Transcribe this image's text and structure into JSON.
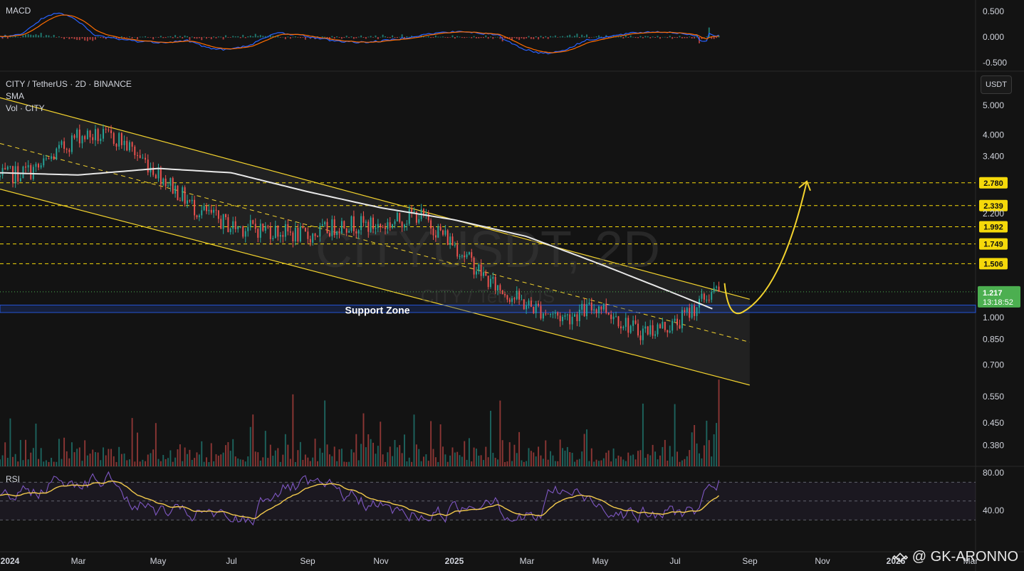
{
  "symbol_header": "CITY / TetherUS · 2D · BINANCE",
  "indicators": {
    "sma": "SMA",
    "vol": "Vol · CITY",
    "macd": "MACD",
    "rsi": "RSI"
  },
  "currency_button": "USDT",
  "watermark": {
    "symbol": "CITYUSDT, 2D",
    "name": "CITY / TetherUS"
  },
  "annotation": {
    "support_zone": "Support Zone"
  },
  "brand": {
    "handle": "@ GK-ARONNO"
  },
  "colors": {
    "up": "#26a69a",
    "down": "#ef5350",
    "channel": "#f2d22e",
    "sma": "#e8e8e8",
    "rsi": "#7e57c2",
    "rsi_ma": "#f2c94c",
    "macd": "#2962ff",
    "signal": "#ff6d00",
    "price_badge": "#4caf50",
    "level_badge": "#f5d90a"
  },
  "chart_data": {
    "type": "candlestick",
    "interval": "2D",
    "y_scale": "log",
    "ylim": [
      0.33,
      6.0
    ],
    "price_ticks": [
      "5.000",
      "4.000",
      "3.400",
      "2.200",
      "1.000",
      "0.850",
      "0.700",
      "0.550",
      "0.450",
      "0.380"
    ],
    "x_ticks": [
      "2024",
      "Mar",
      "May",
      "Jul",
      "Sep",
      "Nov",
      "2025",
      "Mar",
      "May",
      "Jul",
      "Sep",
      "Nov",
      "2026",
      "Mar"
    ],
    "last_price": {
      "value": "1.217",
      "countdown": "13:18:52"
    },
    "resistance_levels": [
      "2.780",
      "2.339",
      "1.992",
      "1.749",
      "1.506"
    ],
    "support_zone": [
      1.04,
      1.1
    ],
    "channel": {
      "upper": [
        [
          "Jan 2024",
          5.3
        ],
        [
          "Sep 2025",
          1.15
        ]
      ],
      "lower": [
        [
          "Jan 2024",
          2.65
        ],
        [
          "Sep 2025",
          0.6
        ]
      ]
    },
    "close_path": [
      [
        "Jan 2024",
        2.9
      ],
      [
        "Feb 2024",
        3.1
      ],
      [
        "Mar 2024",
        4.0
      ],
      [
        "Apr 2024",
        3.9
      ],
      [
        "May 2024",
        3.0
      ],
      [
        "Jun 2024",
        2.3
      ],
      [
        "Jul 2024",
        2.0
      ],
      [
        "Aug 2024",
        1.95
      ],
      [
        "Sep 2024",
        1.85
      ],
      [
        "Oct 2024",
        2.05
      ],
      [
        "Nov 2024",
        2.0
      ],
      [
        "Dec 2024",
        2.2
      ],
      [
        "Jan 2025",
        1.75
      ],
      [
        "Feb 2025",
        1.3
      ],
      [
        "Mar 2025",
        1.1
      ],
      [
        "Apr 2025",
        1.0
      ],
      [
        "May 2025",
        1.1
      ],
      [
        "Jun 2025",
        0.9
      ],
      [
        "Jul 2025",
        0.95
      ],
      [
        "Aug 2025",
        1.217
      ]
    ],
    "sma_path": [
      [
        "Jan 2024",
        3.0
      ],
      [
        "Mar 2024",
        2.95
      ],
      [
        "May 2024",
        3.1
      ],
      [
        "Jul 2024",
        3.0
      ],
      [
        "Sep 2024",
        2.6
      ],
      [
        "Nov 2024",
        2.3
      ],
      [
        "Jan 2025",
        2.1
      ],
      [
        "Mar 2025",
        1.85
      ],
      [
        "May 2025",
        1.5
      ],
      [
        "Jul 2025",
        1.2
      ],
      [
        "Aug 2025",
        1.07
      ]
    ],
    "projection": {
      "from": 1.1,
      "to": 2.78
    },
    "macd": {
      "ticks": [
        "0.500",
        "0.000",
        "-0.500"
      ]
    },
    "rsi": {
      "ticks": [
        "80.00",
        "40.00"
      ],
      "last": 72
    }
  }
}
